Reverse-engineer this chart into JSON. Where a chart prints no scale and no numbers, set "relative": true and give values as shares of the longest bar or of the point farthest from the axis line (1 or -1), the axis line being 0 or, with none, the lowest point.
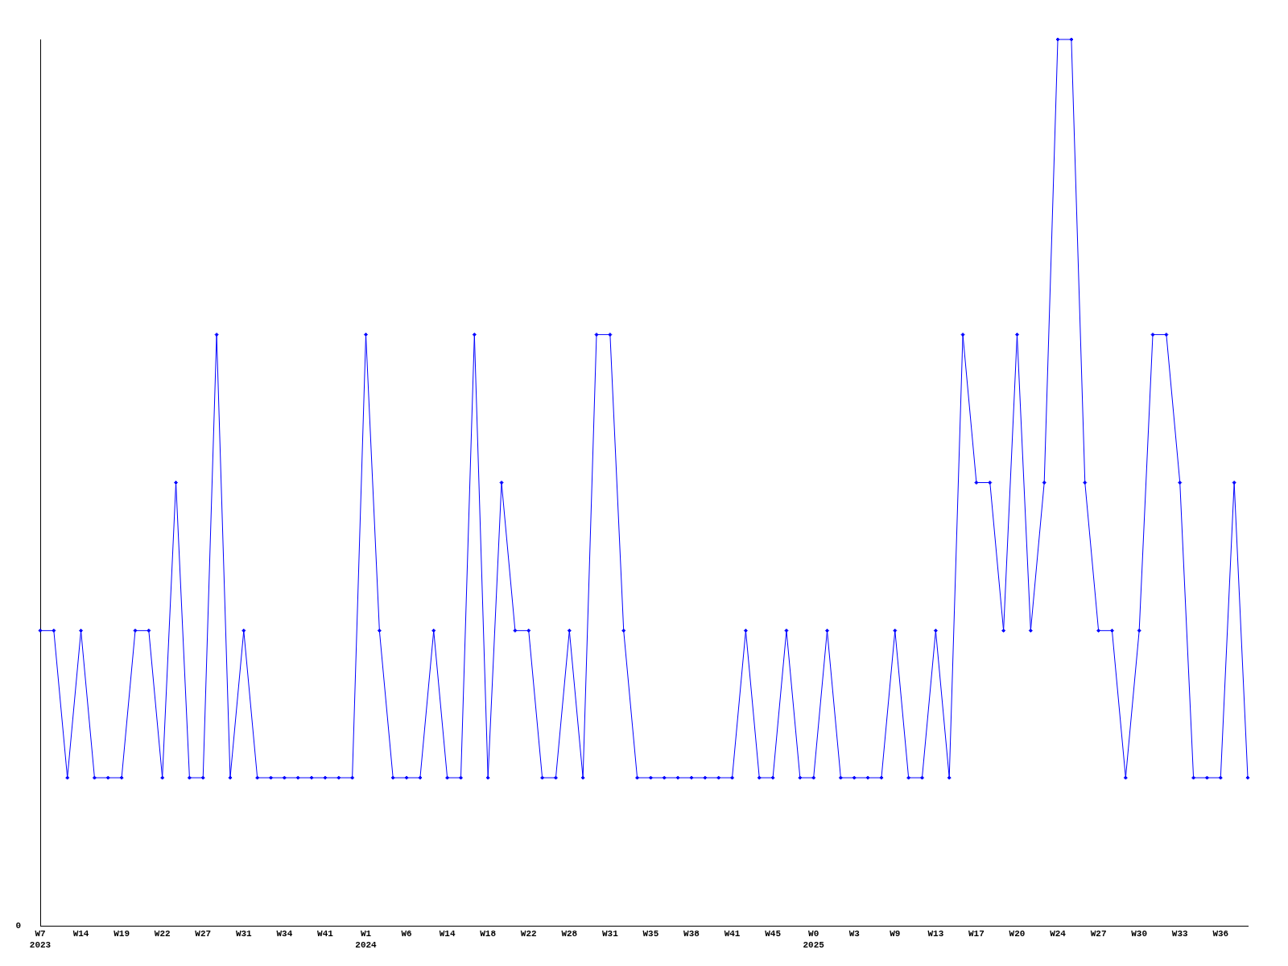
{
  "chart_data": {
    "type": "line",
    "relative": true,
    "marker": "diamond",
    "grid": false,
    "annotations": [
      "0"
    ],
    "categories": [
      "W7\n2023",
      null,
      null,
      "W14",
      null,
      null,
      "W19",
      null,
      null,
      "W22",
      null,
      null,
      "W27",
      null,
      null,
      "W31",
      null,
      null,
      "W34",
      null,
      null,
      "W41",
      null,
      null,
      "W1\n2024",
      null,
      null,
      "W6",
      null,
      null,
      "W14",
      null,
      null,
      "W18",
      null,
      null,
      "W22",
      null,
      null,
      "W28",
      null,
      null,
      "W31",
      null,
      null,
      "W35",
      null,
      null,
      "W38",
      null,
      null,
      "W41",
      null,
      null,
      "W45",
      null,
      null,
      "W0\n2025",
      null,
      null,
      "W3",
      null,
      null,
      "W9",
      null,
      null,
      "W13",
      null,
      null,
      "W17",
      null,
      null,
      "W20",
      null,
      null,
      "W24",
      null,
      null,
      "W27",
      null,
      null,
      "W30",
      null,
      null,
      "W33",
      null,
      null,
      "W36",
      null,
      null
    ],
    "series": [
      {
        "color": "#0000ff",
        "values": [
          0.333,
          0.333,
          0.167,
          0.333,
          0.167,
          0.167,
          0.167,
          0.333,
          0.333,
          0.167,
          0.5,
          0.167,
          0.167,
          0.667,
          0.167,
          0.333,
          0.167,
          0.167,
          0.167,
          0.167,
          0.167,
          0.167,
          0.167,
          0.167,
          0.667,
          0.333,
          0.167,
          0.167,
          0.167,
          0.333,
          0.167,
          0.167,
          0.667,
          0.167,
          0.5,
          0.333,
          0.333,
          0.167,
          0.167,
          0.333,
          0.167,
          0.667,
          0.667,
          0.333,
          0.167,
          0.167,
          0.167,
          0.167,
          0.167,
          0.167,
          0.167,
          0.167,
          0.333,
          0.167,
          0.167,
          0.333,
          0.167,
          0.167,
          0.333,
          0.167,
          0.167,
          0.167,
          0.167,
          0.333,
          0.167,
          0.167,
          0.333,
          0.167,
          0.667,
          0.5,
          0.5,
          0.333,
          0.667,
          0.333,
          0.5,
          1,
          1,
          0.5,
          0.333,
          0.333,
          0.167,
          0.333,
          0.667,
          0.667,
          0.5,
          0.167,
          0.167,
          0.167,
          0.5,
          0.167
        ]
      }
    ]
  }
}
